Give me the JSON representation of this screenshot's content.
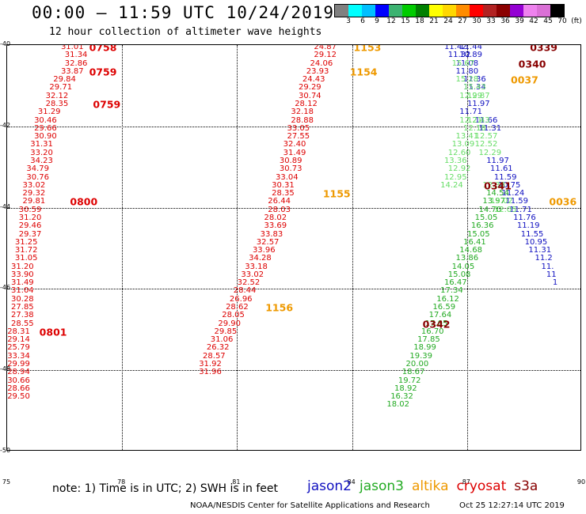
{
  "header": {
    "title": "00:00 – 11:59 UTC 10/24/2019",
    "subtitle": "12 hour collection of altimeter wave heights"
  },
  "colorbar": {
    "colors": [
      "#808080",
      "#00ffff",
      "#00bfff",
      "#0000ff",
      "#3cb371",
      "#00cc00",
      "#008000",
      "#ffff00",
      "#ffd700",
      "#ff8c00",
      "#ff0000",
      "#b22222",
      "#8b0000",
      "#9400d3",
      "#ee82ee",
      "#da70d6",
      "#000000"
    ],
    "labels": [
      "3",
      "6",
      "9",
      "12",
      "15",
      "18",
      "21",
      "24",
      "27",
      "30",
      "33",
      "36",
      "39",
      "42",
      "45",
      "70",
      "(ft)"
    ]
  },
  "axes": {
    "x_ticks": [
      "75",
      "78",
      "81",
      "84",
      "87",
      "90"
    ],
    "y_ticks": [
      "-40",
      "-42",
      "-44",
      "-46",
      "-48",
      "-50"
    ],
    "x_range": [
      75,
      90
    ],
    "y_range": [
      -50,
      -40
    ]
  },
  "colors": {
    "red": "#dd0000",
    "darkred": "#880000",
    "orange": "#ee9900",
    "yellow_orange": "#e8b800",
    "green": "#22aa22",
    "lightgreen": "#66dd66",
    "blue": "#1010c0",
    "navy": "#0000aa"
  },
  "tracks": [
    {
      "color": "red",
      "points": [
        [
          76.7,
          -40.06,
          "31.01"
        ],
        [
          76.8,
          -40.26,
          "31.34"
        ],
        [
          76.8,
          -40.46,
          "32.86"
        ],
        [
          76.7,
          -40.66,
          "33.87"
        ],
        [
          76.5,
          -40.86,
          "29.84"
        ],
        [
          76.4,
          -41.06,
          "29.71"
        ],
        [
          76.3,
          -41.26,
          "32.12"
        ],
        [
          76.3,
          -41.46,
          "28.35"
        ],
        [
          76.1,
          -41.66,
          "31.29"
        ],
        [
          76.0,
          -41.86,
          "30.46"
        ],
        [
          76.0,
          -42.06,
          "29.66"
        ],
        [
          76.0,
          -42.26,
          "30.90"
        ],
        [
          75.9,
          -42.46,
          "31.31"
        ],
        [
          75.9,
          -42.66,
          "33.20"
        ],
        [
          75.9,
          -42.86,
          "34.23"
        ],
        [
          75.8,
          -43.06,
          "34.79"
        ],
        [
          75.8,
          -43.26,
          "30.76"
        ],
        [
          75.7,
          -43.46,
          "33.02"
        ],
        [
          75.7,
          -43.66,
          "29.32"
        ],
        [
          75.7,
          -43.86,
          "29.81"
        ],
        [
          75.6,
          -44.06,
          "30.59"
        ],
        [
          75.6,
          -44.26,
          "31.20"
        ],
        [
          75.6,
          -44.46,
          "29.46"
        ],
        [
          75.6,
          -44.66,
          "29.37"
        ],
        [
          75.5,
          -44.86,
          "31.25"
        ],
        [
          75.5,
          -45.06,
          "31.72"
        ],
        [
          75.5,
          -45.26,
          "31.05"
        ],
        [
          75.4,
          -45.46,
          "31.20"
        ],
        [
          75.4,
          -45.66,
          "33.90"
        ],
        [
          75.4,
          -45.86,
          "31.49"
        ],
        [
          75.4,
          -46.06,
          "31.04"
        ],
        [
          75.4,
          -46.26,
          "30.28"
        ],
        [
          75.4,
          -46.46,
          "27.85"
        ],
        [
          75.4,
          -46.66,
          "27.38"
        ],
        [
          75.4,
          -46.86,
          "28.55"
        ],
        [
          75.3,
          -47.06,
          "28.31"
        ],
        [
          75.3,
          -47.26,
          "29.14"
        ],
        [
          75.3,
          -47.46,
          "25.79"
        ],
        [
          75.3,
          -47.66,
          "33.34"
        ],
        [
          75.3,
          -47.86,
          "29.99"
        ],
        [
          75.3,
          -48.06,
          "28.94"
        ],
        [
          75.3,
          -48.26,
          "30.66"
        ],
        [
          75.3,
          -48.46,
          "28.66"
        ],
        [
          75.3,
          -48.66,
          "29.50"
        ]
      ]
    },
    {
      "color": "red",
      "points": [
        [
          83.3,
          -40.06,
          "24.87"
        ],
        [
          83.3,
          -40.26,
          "29.12"
        ],
        [
          83.2,
          -40.46,
          "24.06"
        ],
        [
          83.1,
          -40.66,
          "23.93"
        ],
        [
          83.0,
          -40.86,
          "24.43"
        ],
        [
          82.9,
          -41.06,
          "29.29"
        ],
        [
          82.9,
          -41.26,
          "30.74"
        ],
        [
          82.8,
          -41.46,
          "28.12"
        ],
        [
          82.7,
          -41.66,
          "32.18"
        ],
        [
          82.7,
          -41.86,
          "28.88"
        ],
        [
          82.6,
          -42.06,
          "33.05"
        ],
        [
          82.6,
          -42.26,
          "27.55"
        ],
        [
          82.5,
          -42.46,
          "32.40"
        ],
        [
          82.5,
          -42.66,
          "31.49"
        ],
        [
          82.4,
          -42.86,
          "30.89"
        ],
        [
          82.4,
          -43.06,
          "30.73"
        ],
        [
          82.3,
          -43.26,
          "33.04"
        ],
        [
          82.2,
          -43.46,
          "30.31"
        ],
        [
          82.2,
          -43.66,
          "28.35"
        ],
        [
          82.1,
          -43.86,
          "26.44"
        ],
        [
          82.1,
          -44.06,
          "28.03"
        ],
        [
          82.0,
          -44.26,
          "28.02"
        ],
        [
          82.0,
          -44.46,
          "33.69"
        ],
        [
          81.9,
          -44.66,
          "33.83"
        ],
        [
          81.8,
          -44.86,
          "32.57"
        ],
        [
          81.7,
          -45.06,
          "33.96"
        ],
        [
          81.6,
          -45.26,
          "34.28"
        ],
        [
          81.5,
          -45.46,
          "33.18"
        ],
        [
          81.4,
          -45.66,
          "33.02"
        ],
        [
          81.3,
          -45.86,
          "32.52"
        ],
        [
          81.2,
          -46.06,
          "28.44"
        ],
        [
          81.1,
          -46.26,
          "26.96"
        ],
        [
          81.0,
          -46.46,
          "28.62"
        ],
        [
          80.9,
          -46.66,
          "28.05"
        ],
        [
          80.8,
          -46.86,
          "29.90"
        ],
        [
          80.7,
          -47.06,
          "29.85"
        ],
        [
          80.6,
          -47.26,
          "31.06"
        ],
        [
          80.5,
          -47.46,
          "26.32"
        ],
        [
          80.4,
          -47.66,
          "28.57"
        ],
        [
          80.3,
          -47.86,
          "31.92"
        ],
        [
          80.3,
          -48.06,
          "31.96"
        ]
      ]
    },
    {
      "color": "green",
      "points": [
        [
          87.8,
          -43.66,
          "14.54"
        ],
        [
          87.7,
          -43.86,
          "13.97"
        ],
        [
          87.6,
          -44.06,
          "14.70"
        ],
        [
          87.5,
          -44.26,
          "15.05"
        ],
        [
          87.4,
          -44.46,
          "16.36"
        ],
        [
          87.3,
          -44.66,
          "15.05"
        ],
        [
          87.2,
          -44.86,
          "16.41"
        ],
        [
          87.1,
          -45.06,
          "14.68"
        ],
        [
          87.0,
          -45.26,
          "13.86"
        ],
        [
          86.9,
          -45.46,
          "14.05"
        ],
        [
          86.8,
          -45.66,
          "15.08"
        ],
        [
          86.7,
          -45.86,
          "16.47"
        ],
        [
          86.6,
          -46.06,
          "17.34"
        ],
        [
          86.5,
          -46.26,
          "16.12"
        ],
        [
          86.4,
          -46.46,
          "16.59"
        ],
        [
          86.3,
          -46.66,
          "17.64"
        ],
        [
          86.2,
          -46.86,
          "17.05"
        ],
        [
          86.1,
          -47.06,
          "16.70"
        ],
        [
          86.0,
          -47.26,
          "17.85"
        ],
        [
          85.9,
          -47.46,
          "18.99"
        ],
        [
          85.8,
          -47.66,
          "19.39"
        ],
        [
          85.7,
          -47.86,
          "20.00"
        ],
        [
          85.6,
          -48.06,
          "18.67"
        ],
        [
          85.5,
          -48.26,
          "19.72"
        ],
        [
          85.4,
          -48.46,
          "18.92"
        ],
        [
          85.3,
          -48.66,
          "16.32"
        ],
        [
          85.2,
          -48.86,
          "18.02"
        ]
      ]
    },
    {
      "color": "blue",
      "points": [
        [
          86.7,
          -40.06,
          "11.42"
        ],
        [
          87.1,
          -40.06,
          "11.44"
        ],
        [
          86.8,
          -40.26,
          "11.32"
        ],
        [
          87.1,
          -40.26,
          "10.89"
        ],
        [
          87.0,
          -40.46,
          "11.08"
        ],
        [
          87.0,
          -40.66,
          "11.80"
        ],
        [
          87.2,
          -40.86,
          "11.36"
        ],
        [
          87.2,
          -41.06,
          "11.34"
        ],
        [
          87.3,
          -41.46,
          "11.97"
        ],
        [
          87.1,
          -41.66,
          "11.71"
        ],
        [
          87.5,
          -41.86,
          "11.66"
        ],
        [
          87.6,
          -42.06,
          "11.31"
        ],
        [
          87.8,
          -42.86,
          "11.97"
        ],
        [
          87.9,
          -43.06,
          "11.61"
        ],
        [
          88.0,
          -43.26,
          "11.59"
        ],
        [
          88.1,
          -43.46,
          "10.75"
        ],
        [
          88.2,
          -43.66,
          "11.24"
        ],
        [
          88.3,
          -43.86,
          "11.59"
        ],
        [
          88.4,
          -44.06,
          "11.71"
        ],
        [
          88.5,
          -44.26,
          "11.76"
        ],
        [
          88.6,
          -44.46,
          "11.19"
        ],
        [
          88.7,
          -44.66,
          "11.55"
        ],
        [
          88.8,
          -44.86,
          "10.95"
        ],
        [
          88.9,
          -45.06,
          "11.31"
        ],
        [
          89.0,
          -45.26,
          "11.2"
        ],
        [
          89.1,
          -45.46,
          "11."
        ],
        [
          89.2,
          -45.66,
          "11"
        ],
        [
          89.3,
          -45.86,
          "1"
        ]
      ]
    },
    {
      "color": "lightgreen",
      "points": [
        [
          86.9,
          -40.46,
          "15.67"
        ],
        [
          87.0,
          -40.86,
          "15.28"
        ],
        [
          87.2,
          -41.06,
          "15.43"
        ],
        [
          87.3,
          -41.26,
          "12.87"
        ],
        [
          87.1,
          -41.26,
          "12.99"
        ],
        [
          87.2,
          -42.06,
          "12.18"
        ],
        [
          87.1,
          -41.86,
          "12.21"
        ],
        [
          87.3,
          -41.86,
          "12.43"
        ],
        [
          87.0,
          -42.26,
          "13.41"
        ],
        [
          86.9,
          -42.46,
          "13.09"
        ],
        [
          86.8,
          -42.66,
          "12.60"
        ],
        [
          86.7,
          -42.86,
          "13.36"
        ],
        [
          86.8,
          -43.06,
          "12.92"
        ],
        [
          86.7,
          -43.26,
          "12.95"
        ],
        [
          86.6,
          -43.46,
          "14.24"
        ],
        [
          87.5,
          -42.26,
          "12.57"
        ],
        [
          87.5,
          -42.46,
          "12.52"
        ],
        [
          87.6,
          -42.66,
          "12.29"
        ],
        [
          87.7,
          -43.46,
          "12.38"
        ],
        [
          87.9,
          -43.86,
          "13.02"
        ],
        [
          88.0,
          -44.06,
          "12.05"
        ]
      ]
    }
  ],
  "time_marks": [
    {
      "lon": 77.5,
      "lat": -40.06,
      "text": "0758",
      "color": "red"
    },
    {
      "lon": 77.5,
      "lat": -40.66,
      "text": "0759",
      "color": "red"
    },
    {
      "lon": 77.6,
      "lat": -41.46,
      "text": "0759",
      "color": "red"
    },
    {
      "lon": 77.0,
      "lat": -43.86,
      "text": "0800",
      "color": "red"
    },
    {
      "lon": 76.2,
      "lat": -47.06,
      "text": "0801",
      "color": "red"
    },
    {
      "lon": 84.4,
      "lat": -40.06,
      "text": "1153",
      "color": "orange"
    },
    {
      "lon": 84.3,
      "lat": -40.66,
      "text": "1154",
      "color": "orange"
    },
    {
      "lon": 83.6,
      "lat": -43.66,
      "text": "1155",
      "color": "orange"
    },
    {
      "lon": 82.1,
      "lat": -46.46,
      "text": "1156",
      "color": "orange"
    },
    {
      "lon": 89.0,
      "lat": -40.06,
      "text": "0339",
      "color": "darkred"
    },
    {
      "lon": 88.7,
      "lat": -40.46,
      "text": "0340",
      "color": "darkred"
    },
    {
      "lon": 87.8,
      "lat": -43.46,
      "text": "0341",
      "color": "darkred"
    },
    {
      "lon": 86.2,
      "lat": -46.86,
      "text": "0342",
      "color": "darkred"
    },
    {
      "lon": 88.5,
      "lat": -40.86,
      "text": "0037",
      "color": "orange"
    },
    {
      "lon": 89.5,
      "lat": -43.86,
      "text": "0036",
      "color": "orange"
    }
  ],
  "footer": {
    "note": "note:  1) Time is in UTC;  2) SWH is in feet",
    "satellites": [
      {
        "name": "jason2",
        "color": "#1010c0"
      },
      {
        "name": "jason3",
        "color": "#22aa22"
      },
      {
        "name": "altika",
        "color": "#ee9900"
      },
      {
        "name": "cryosat",
        "color": "#dd0000"
      },
      {
        "name": "s3a",
        "color": "#880000"
      }
    ],
    "credit": "NOAA/NESDIS Center for Satellite Applications and Research",
    "timestamp": "Oct 25 12:27:14 UTC 2019"
  }
}
